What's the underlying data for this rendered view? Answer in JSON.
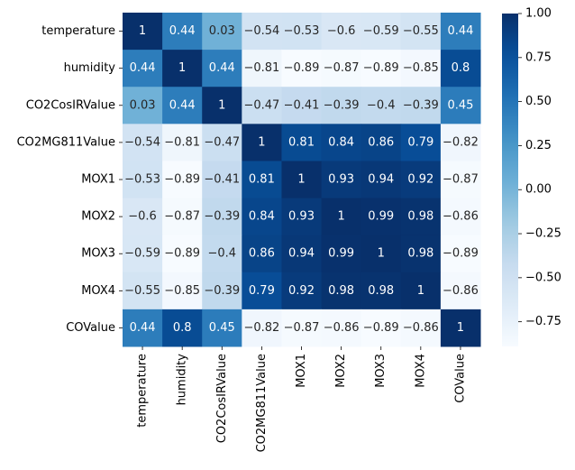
{
  "chart_data": {
    "type": "heatmap",
    "title": "",
    "xlabel": "",
    "ylabel": "",
    "labels": [
      "temperature",
      "humidity",
      "CO2CosIRValue",
      "CO2MG811Value",
      "MOX1",
      "MOX2",
      "MOX3",
      "MOX4",
      "COValue"
    ],
    "values": [
      [
        1,
        0.44,
        0.03,
        -0.54,
        -0.53,
        -0.6,
        -0.59,
        -0.55,
        0.44
      ],
      [
        0.44,
        1,
        0.44,
        -0.81,
        -0.89,
        -0.87,
        -0.89,
        -0.85,
        0.8
      ],
      [
        0.03,
        0.44,
        1,
        -0.47,
        -0.41,
        -0.39,
        -0.4,
        -0.39,
        0.45
      ],
      [
        -0.54,
        -0.81,
        -0.47,
        1,
        0.81,
        0.84,
        0.86,
        0.79,
        -0.82
      ],
      [
        -0.53,
        -0.89,
        -0.41,
        0.81,
        1,
        0.93,
        0.94,
        0.92,
        -0.87
      ],
      [
        -0.6,
        -0.87,
        -0.39,
        0.84,
        0.93,
        1,
        0.99,
        0.98,
        -0.86
      ],
      [
        -0.59,
        -0.89,
        -0.4,
        0.86,
        0.94,
        0.99,
        1,
        0.98,
        -0.89
      ],
      [
        -0.55,
        -0.85,
        -0.39,
        0.79,
        0.92,
        0.98,
        0.98,
        1,
        -0.86
      ],
      [
        0.44,
        0.8,
        0.45,
        -0.82,
        -0.87,
        -0.86,
        -0.89,
        -0.86,
        1
      ]
    ],
    "colormap": "Blues",
    "vmin": -0.89,
    "vmax": 1,
    "annotated": true,
    "colorbar": {
      "ticks": [
        1.0,
        0.75,
        0.5,
        0.25,
        0.0,
        -0.25,
        -0.5,
        -0.75
      ],
      "tick_labels": [
        "1.00",
        "0.75",
        "0.50",
        "0.25",
        "0.00",
        "−0.25",
        "−0.50",
        "−0.75"
      ],
      "placement": "right"
    },
    "grid": false,
    "legend": "none"
  }
}
